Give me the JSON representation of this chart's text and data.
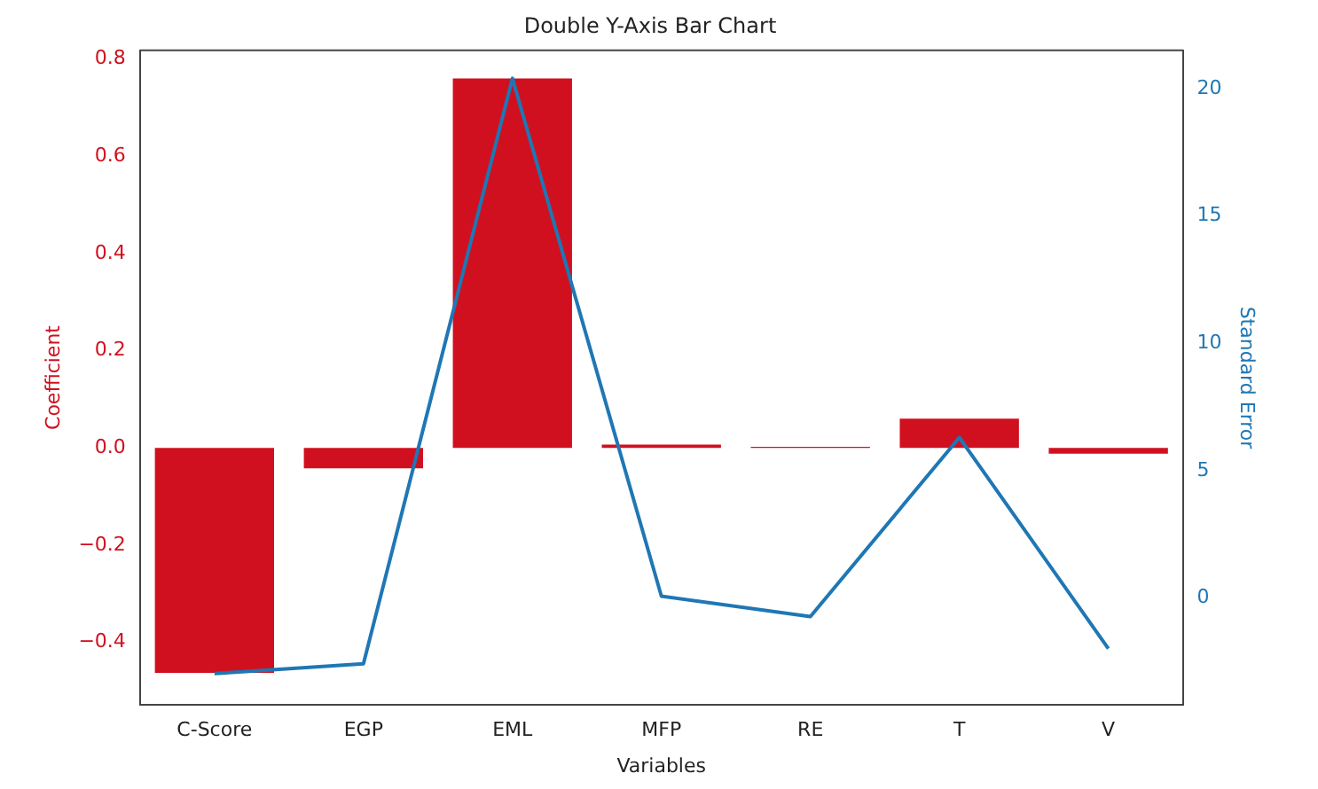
{
  "chart_data": {
    "type": "bar",
    "title": "Double Y-Axis Bar Chart",
    "xlabel": "Variables",
    "ylabel": "Coefficient",
    "y2label": "Standard Error",
    "categories": [
      "C-Score",
      "EGP",
      "EML",
      "MFP",
      "RE",
      "T",
      "V"
    ],
    "series": [
      {
        "color": "#d0101f",
        "values": [
          -0.463,
          -0.042,
          0.76,
          0.007,
          0.002,
          0.06,
          -0.012
        ]
      },
      {
        "type": "line",
        "axis": "y2",
        "color": "#1f77b4",
        "values": [
          -2.97,
          -2.58,
          20.4,
          0.07,
          -0.73,
          6.3,
          -1.99
        ]
      }
    ],
    "ylim": [
      -0.529,
      0.818
    ],
    "yticks": [
      {
        "value": -0.4,
        "label": "−0.4"
      },
      {
        "value": -0.2,
        "label": "−0.2"
      },
      {
        "value": 0,
        "label": "0.0"
      },
      {
        "value": 0.2,
        "label": "0.2"
      },
      {
        "value": 0.4,
        "label": "0.4"
      },
      {
        "value": 0.6,
        "label": "0.6"
      },
      {
        "value": 0.8,
        "label": "0.8"
      }
    ],
    "y2lim": [
      -4.2,
      21.5
    ],
    "y2ticks": [
      0,
      5,
      10,
      15,
      20
    ],
    "grid": false,
    "legend": false,
    "marker": "none",
    "line_style": "solid"
  }
}
